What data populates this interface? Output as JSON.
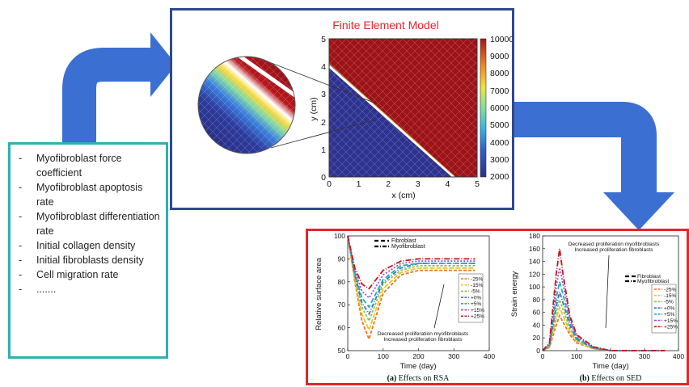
{
  "parameters": [
    "Myofibroblast force coefficient",
    "Myofibroblast apoptosis rate",
    "Myofibroblast differentiation rate",
    "Initial collagen density",
    "Initial fibroblasts density",
    "Cell migration rate",
    "......."
  ],
  "fem": {
    "title": "Finite Element Model",
    "xlabel": "x (cm)",
    "ylabel": "y (cm)",
    "ticks": [
      "0",
      "1",
      "2",
      "3",
      "4",
      "5"
    ],
    "colorbar_ticks": [
      "10000",
      "9000",
      "8000",
      "7000",
      "6000",
      "5000",
      "4000",
      "3000",
      "2000"
    ]
  },
  "colors": {
    "params_border": "#2ab3b0",
    "fem_border": "#2e4a8f",
    "results_border": "#e8242a",
    "arrow": "#3b6fd1",
    "fem_title": "#e8242a"
  },
  "chart_data": [
    {
      "type": "line",
      "xlabel": "Time (day)",
      "ylabel": "Relative surface area",
      "caption_tag": "(a)",
      "caption": "Effects on RSA",
      "xlim": [
        0,
        400
      ],
      "ylim": [
        50,
        100
      ],
      "xticks": [
        "0",
        "100",
        "200",
        "300",
        "400"
      ],
      "yticks": [
        "50",
        "60",
        "70",
        "80",
        "90",
        "100"
      ],
      "legend_types": [
        "Fibroblast",
        "Myofibroblast"
      ],
      "legend": [
        "-25%",
        "-15%",
        "-5%",
        "+0%",
        "+5%",
        "+15%",
        "+25%"
      ],
      "annotation": [
        "Decreased proliferation myofibroblasts",
        "Increased proliferation fibroblasts"
      ],
      "series": [
        {
          "name": "-25%",
          "x": [
            0,
            20,
            40,
            60,
            80,
            100,
            150,
            200,
            250,
            300,
            360
          ],
          "y": [
            100,
            80,
            63,
            55,
            65,
            75,
            83,
            85,
            85,
            85,
            85
          ]
        },
        {
          "name": "-15%",
          "x": [
            0,
            20,
            40,
            60,
            80,
            100,
            150,
            200,
            250,
            300,
            360
          ],
          "y": [
            100,
            81,
            66,
            59,
            68,
            77,
            84,
            86,
            86,
            86,
            86
          ]
        },
        {
          "name": "-5%",
          "x": [
            0,
            20,
            40,
            60,
            80,
            100,
            150,
            200,
            250,
            300,
            360
          ],
          "y": [
            100,
            82,
            69,
            63,
            71,
            79,
            85,
            87,
            87,
            87,
            87
          ]
        },
        {
          "name": "+0%",
          "x": [
            0,
            20,
            40,
            60,
            80,
            100,
            150,
            200,
            250,
            300,
            360
          ],
          "y": [
            100,
            83,
            71,
            66,
            73,
            80,
            86,
            88,
            88,
            88,
            88
          ]
        },
        {
          "name": "+5%",
          "x": [
            0,
            20,
            40,
            60,
            80,
            100,
            150,
            200,
            250,
            300,
            360
          ],
          "y": [
            100,
            84,
            73,
            69,
            75,
            81,
            87,
            88,
            88,
            88,
            88
          ]
        },
        {
          "name": "+15%",
          "x": [
            0,
            20,
            40,
            60,
            80,
            100,
            150,
            200,
            250,
            300,
            360
          ],
          "y": [
            100,
            85,
            76,
            73,
            78,
            83,
            88,
            89,
            89,
            89,
            89
          ]
        },
        {
          "name": "+25%",
          "x": [
            0,
            20,
            40,
            60,
            80,
            100,
            150,
            200,
            250,
            300,
            360
          ],
          "y": [
            100,
            86,
            79,
            77,
            81,
            85,
            89,
            90,
            90,
            90,
            90
          ]
        }
      ]
    },
    {
      "type": "line",
      "xlabel": "Time (day)",
      "ylabel": "Strain energy",
      "caption_tag": "(b)",
      "caption": "Effects on SED",
      "xlim": [
        0,
        400
      ],
      "ylim": [
        0,
        180
      ],
      "xticks": [
        "0",
        "100",
        "200",
        "300",
        "400"
      ],
      "yticks": [
        "0",
        "20",
        "40",
        "60",
        "80",
        "100",
        "120",
        "140",
        "160",
        "180"
      ],
      "legend_types": [
        "Fibroblast",
        "Myofibroblast"
      ],
      "legend": [
        "-25%",
        "-15%",
        "-5%",
        "+0%",
        "+5%",
        "+15%",
        "+25%"
      ],
      "annotation": [
        "Decreased proliferation myofibroblasts",
        "Increased proliferation fibroblasts"
      ],
      "series": [
        {
          "name": "-25%",
          "x": [
            0,
            20,
            40,
            50,
            60,
            80,
            100,
            150,
            200,
            250,
            300,
            360
          ],
          "y": [
            0,
            5,
            40,
            55,
            45,
            25,
            12,
            3,
            0,
            0,
            0,
            0
          ]
        },
        {
          "name": "-15%",
          "x": [
            0,
            20,
            40,
            50,
            60,
            80,
            100,
            150,
            200,
            250,
            300,
            360
          ],
          "y": [
            0,
            6,
            50,
            68,
            55,
            30,
            14,
            3,
            0,
            0,
            0,
            0
          ]
        },
        {
          "name": "-5%",
          "x": [
            0,
            20,
            40,
            50,
            60,
            80,
            100,
            150,
            200,
            250,
            300,
            360
          ],
          "y": [
            0,
            7,
            60,
            80,
            65,
            35,
            16,
            4,
            0,
            0,
            0,
            0
          ]
        },
        {
          "name": "+0%",
          "x": [
            0,
            20,
            40,
            50,
            60,
            80,
            100,
            150,
            200,
            250,
            300,
            360
          ],
          "y": [
            0,
            8,
            70,
            92,
            75,
            40,
            18,
            4,
            0,
            0,
            0,
            0
          ]
        },
        {
          "name": "+5%",
          "x": [
            0,
            20,
            40,
            50,
            60,
            80,
            100,
            150,
            200,
            250,
            300,
            360
          ],
          "y": [
            0,
            9,
            82,
            108,
            88,
            45,
            20,
            5,
            0,
            0,
            0,
            0
          ]
        },
        {
          "name": "+15%",
          "x": [
            0,
            20,
            40,
            50,
            60,
            80,
            100,
            150,
            200,
            250,
            300,
            360
          ],
          "y": [
            0,
            10,
            100,
            130,
            105,
            50,
            22,
            5,
            0,
            0,
            0,
            0
          ]
        },
        {
          "name": "+25%",
          "x": [
            0,
            20,
            40,
            50,
            60,
            80,
            100,
            150,
            200,
            250,
            300,
            360
          ],
          "y": [
            0,
            12,
            120,
            160,
            120,
            55,
            25,
            6,
            0,
            0,
            0,
            0
          ]
        }
      ]
    }
  ]
}
